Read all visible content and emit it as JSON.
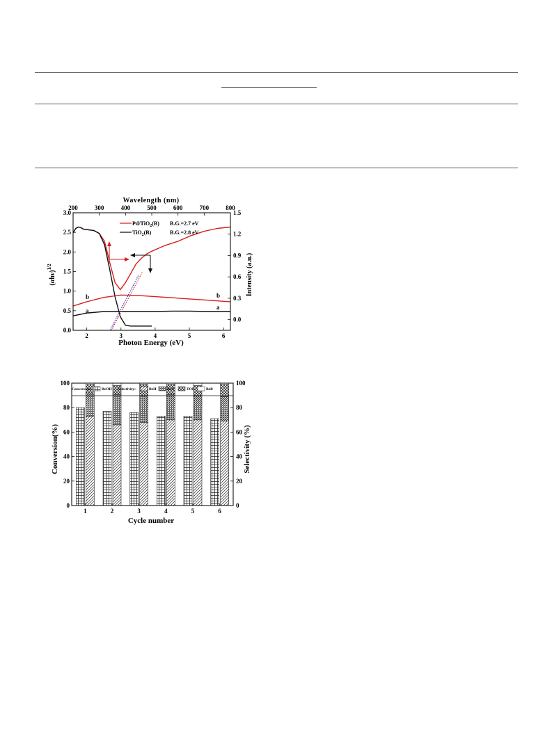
{
  "chart_data": [
    {
      "type": "line",
      "xlabel": "Photon Energy (eV)",
      "ylabel": "(αhν)^1/2",
      "top_xlabel": "Wavelength (nm)",
      "right_ylabel": "Intensity (a.u.)",
      "xlim": [
        1.6,
        6.2
      ],
      "ylim": [
        0.0,
        3.0
      ],
      "top_xlim": [
        200,
        800
      ],
      "right_ylim": [
        -0.15,
        1.5
      ],
      "x_ticks": [
        "2",
        "3",
        "4",
        "5",
        "6"
      ],
      "top_x_ticks": [
        "200",
        "300",
        "400",
        "500",
        "600",
        "700",
        "800"
      ],
      "y_ticks": [
        "0.0",
        "0.5",
        "1.0",
        "1.5",
        "2.0",
        "2.5",
        "3.0"
      ],
      "right_y_ticks": [
        "0.0",
        "0.3",
        "0.6",
        "0.9",
        "1.2",
        "1.5"
      ],
      "legend": [
        {
          "label": "Pd/TiO2(B)",
          "bandgap": "B.G.=2.7 eV",
          "color": "#d62020"
        },
        {
          "label": "TiO2(B)",
          "bandgap": "B.G.=2.8 eV",
          "color": "#111111"
        }
      ],
      "curve_labels": {
        "a": "a",
        "b": "b"
      },
      "series": [
        {
          "name": "Pd/TiO2(B) absorbance",
          "color": "#d62020",
          "axis": "top",
          "x": [
            200,
            210,
            220,
            230,
            240,
            260,
            280,
            300,
            320,
            340,
            360,
            380,
            400,
            420,
            440,
            460,
            480,
            500,
            550,
            600,
            650,
            700,
            750,
            800
          ],
          "y": [
            1.22,
            1.28,
            1.3,
            1.29,
            1.27,
            1.26,
            1.25,
            1.21,
            1.1,
            0.8,
            0.52,
            0.42,
            0.52,
            0.65,
            0.78,
            0.86,
            0.92,
            0.96,
            1.04,
            1.1,
            1.18,
            1.24,
            1.28,
            1.3
          ]
        },
        {
          "name": "TiO2(B) absorbance",
          "color": "#111111",
          "axis": "top",
          "x": [
            200,
            210,
            220,
            230,
            240,
            260,
            280,
            300,
            320,
            340,
            360,
            380,
            400,
            420,
            440,
            460,
            480,
            500
          ],
          "y": [
            1.22,
            1.28,
            1.3,
            1.29,
            1.27,
            1.26,
            1.25,
            1.21,
            1.05,
            0.7,
            0.32,
            0.04,
            -0.08,
            -0.09,
            -0.09,
            -0.09,
            -0.09,
            -0.09
          ]
        },
        {
          "name": "b",
          "color": "#d62020",
          "axis": "bottom",
          "x": [
            1.6,
            2.0,
            2.5,
            3.0,
            3.5,
            4.0,
            4.5,
            5.0,
            5.5,
            6.0,
            6.2
          ],
          "y": [
            0.62,
            0.73,
            0.84,
            0.9,
            0.89,
            0.86,
            0.83,
            0.8,
            0.77,
            0.74,
            0.73
          ]
        },
        {
          "name": "a",
          "color": "#111111",
          "axis": "bottom",
          "x": [
            1.6,
            2.0,
            2.5,
            3.0,
            3.5,
            4.0,
            4.5,
            5.0,
            5.5,
            6.0,
            6.2
          ],
          "y": [
            0.37,
            0.44,
            0.48,
            0.48,
            0.48,
            0.48,
            0.49,
            0.49,
            0.48,
            0.48,
            0.48
          ]
        }
      ],
      "tangents": [
        {
          "color": "#2222cc",
          "x": [
            2.68,
            3.52
          ],
          "y": [
            0.0,
            1.42
          ]
        },
        {
          "color": "#d62020",
          "x": [
            2.72,
            3.62
          ],
          "y": [
            0.0,
            1.48
          ]
        }
      ]
    },
    {
      "type": "bar",
      "xlabel": "Cycle number",
      "ylabel": "Conversion(%)",
      "right_ylabel": "Selectivity (%)",
      "ylim": [
        0,
        100
      ],
      "y_ticks": [
        "0",
        "20",
        "40",
        "60",
        "80",
        "100"
      ],
      "categories": [
        "1",
        "2",
        "3",
        "4",
        "5",
        "6"
      ],
      "legend": {
        "conversion_title": "Conversion:",
        "selectivity_title": "Selectivity:",
        "items": [
          "BzOH",
          "BzH",
          "BzA",
          "TOL",
          "BzB"
        ]
      },
      "series": [
        {
          "name": "BzOH",
          "values": [
            80,
            77,
            76,
            73,
            73,
            71
          ]
        },
        {
          "name": "BzH",
          "values": [
            73,
            66,
            68,
            70,
            70,
            69
          ]
        },
        {
          "name": "BzA",
          "values": [
            19,
            25,
            22,
            21,
            20,
            20
          ]
        },
        {
          "name": "TOL",
          "values": [
            7,
            7,
            9,
            8,
            8,
            10
          ]
        },
        {
          "name": "BzB",
          "values": [
            1,
            2,
            1,
            1,
            2,
            1
          ]
        }
      ]
    }
  ]
}
